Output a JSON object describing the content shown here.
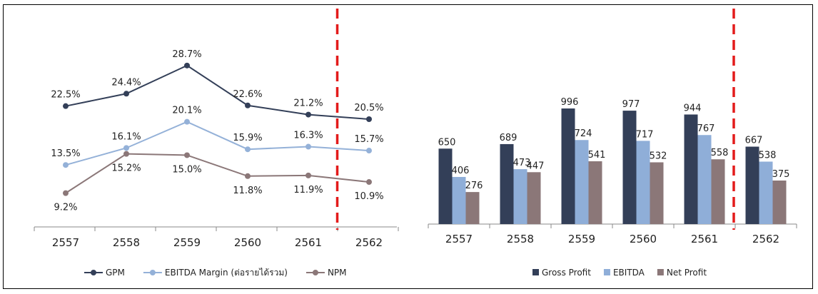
{
  "charts": [
    {
      "type": "line",
      "categories": [
        "2557",
        "2558",
        "2559",
        "2560",
        "2561",
        "2562"
      ],
      "series": [
        {
          "name": "GPM",
          "values": [
            22.5,
            24.4,
            28.7,
            22.6,
            21.2,
            20.5
          ],
          "labels": [
            "22.5%",
            "24.4%",
            "28.7%",
            "22.6%",
            "21.2%",
            "20.5%"
          ],
          "color": "#333f58"
        },
        {
          "name": "EBITDA Margin (ต่อรายได้รวม)",
          "values": [
            13.5,
            16.1,
            20.1,
            15.9,
            16.3,
            15.7
          ],
          "labels": [
            "13.5%",
            "16.1%",
            "20.1%",
            "15.9%",
            "16.3%",
            "15.7%"
          ],
          "color": "#94b1d8"
        },
        {
          "name": "NPM",
          "values": [
            9.2,
            15.2,
            15.0,
            11.8,
            11.9,
            10.9
          ],
          "labels": [
            "9.2%",
            "15.2%",
            "15.0%",
            "11.8%",
            "11.9%",
            "10.9%"
          ],
          "color": "#8b7778"
        }
      ],
      "divider_after_category": "2561",
      "divider_color": "#e31b1b"
    },
    {
      "type": "bar",
      "categories": [
        "2557",
        "2558",
        "2559",
        "2560",
        "2561",
        "2562"
      ],
      "series": [
        {
          "name": "Gross Profit",
          "values": [
            650,
            689,
            996,
            977,
            944,
            667
          ],
          "color": "#333f58"
        },
        {
          "name": "EBITDA",
          "values": [
            406,
            473,
            724,
            717,
            767,
            538
          ],
          "color": "#8faed8"
        },
        {
          "name": "Net Profit",
          "values": [
            276,
            447,
            541,
            532,
            558,
            375
          ],
          "color": "#8b7778"
        }
      ],
      "divider_after_category": "2561",
      "divider_color": "#e31b1b"
    }
  ]
}
